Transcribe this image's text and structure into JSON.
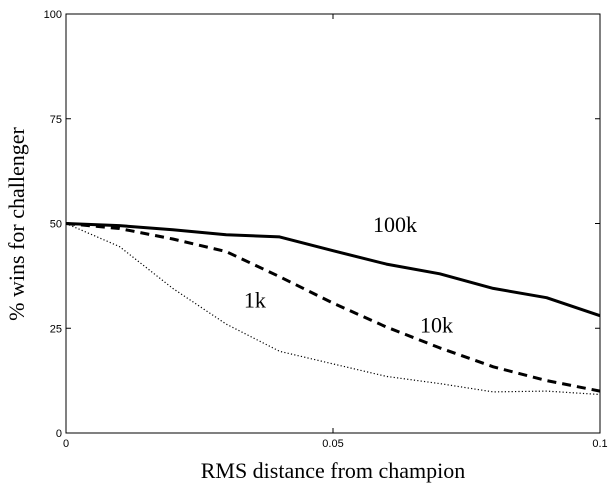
{
  "chart_data": {
    "type": "line",
    "title": "",
    "xlabel": "RMS distance from champion",
    "ylabel": "% wins for challenger",
    "xlim": [
      0,
      0.1
    ],
    "ylim": [
      0,
      100
    ],
    "x_ticks": [
      0,
      0.05,
      0.1
    ],
    "x_tick_labels": [
      "0",
      "0.05",
      "0.1"
    ],
    "y_ticks": [
      0,
      25,
      50,
      75,
      100
    ],
    "y_tick_labels": [
      "0",
      "25",
      "50",
      "75",
      "100"
    ],
    "grid": false,
    "legend": "none",
    "series": [
      {
        "name": "100k",
        "style": "solid",
        "x": [
          0,
          0.01,
          0.02,
          0.03,
          0.04,
          0.05,
          0.06,
          0.07,
          0.08,
          0.09,
          0.1
        ],
        "values": [
          50,
          49.5,
          48.5,
          47.3,
          46.8,
          43.5,
          40.3,
          38,
          34.5,
          32.3,
          28
        ]
      },
      {
        "name": "10k",
        "style": "dashed",
        "x": [
          0,
          0.01,
          0.02,
          0.03,
          0.04,
          0.05,
          0.06,
          0.07,
          0.08,
          0.09,
          0.1
        ],
        "values": [
          50,
          48.8,
          46.3,
          43.3,
          37.3,
          31,
          25.3,
          20.3,
          15.8,
          12.5,
          10
        ]
      },
      {
        "name": "1k",
        "style": "dotted",
        "x": [
          0,
          0.01,
          0.02,
          0.03,
          0.04,
          0.05,
          0.06,
          0.07,
          0.08,
          0.09,
          0.1
        ],
        "values": [
          50,
          44.5,
          34.5,
          26,
          19.5,
          16.5,
          13.5,
          11.8,
          9.8,
          10,
          9.2
        ]
      }
    ],
    "annotations": [
      {
        "text": "100k",
        "x": 0.0575,
        "y": 48
      },
      {
        "text": "10k",
        "x": 0.0663,
        "y": 24
      },
      {
        "text": "1k",
        "x": 0.0333,
        "y": 30
      }
    ],
    "colors": {
      "line": "#000000",
      "axes": "#000000",
      "background": "#ffffff"
    }
  }
}
